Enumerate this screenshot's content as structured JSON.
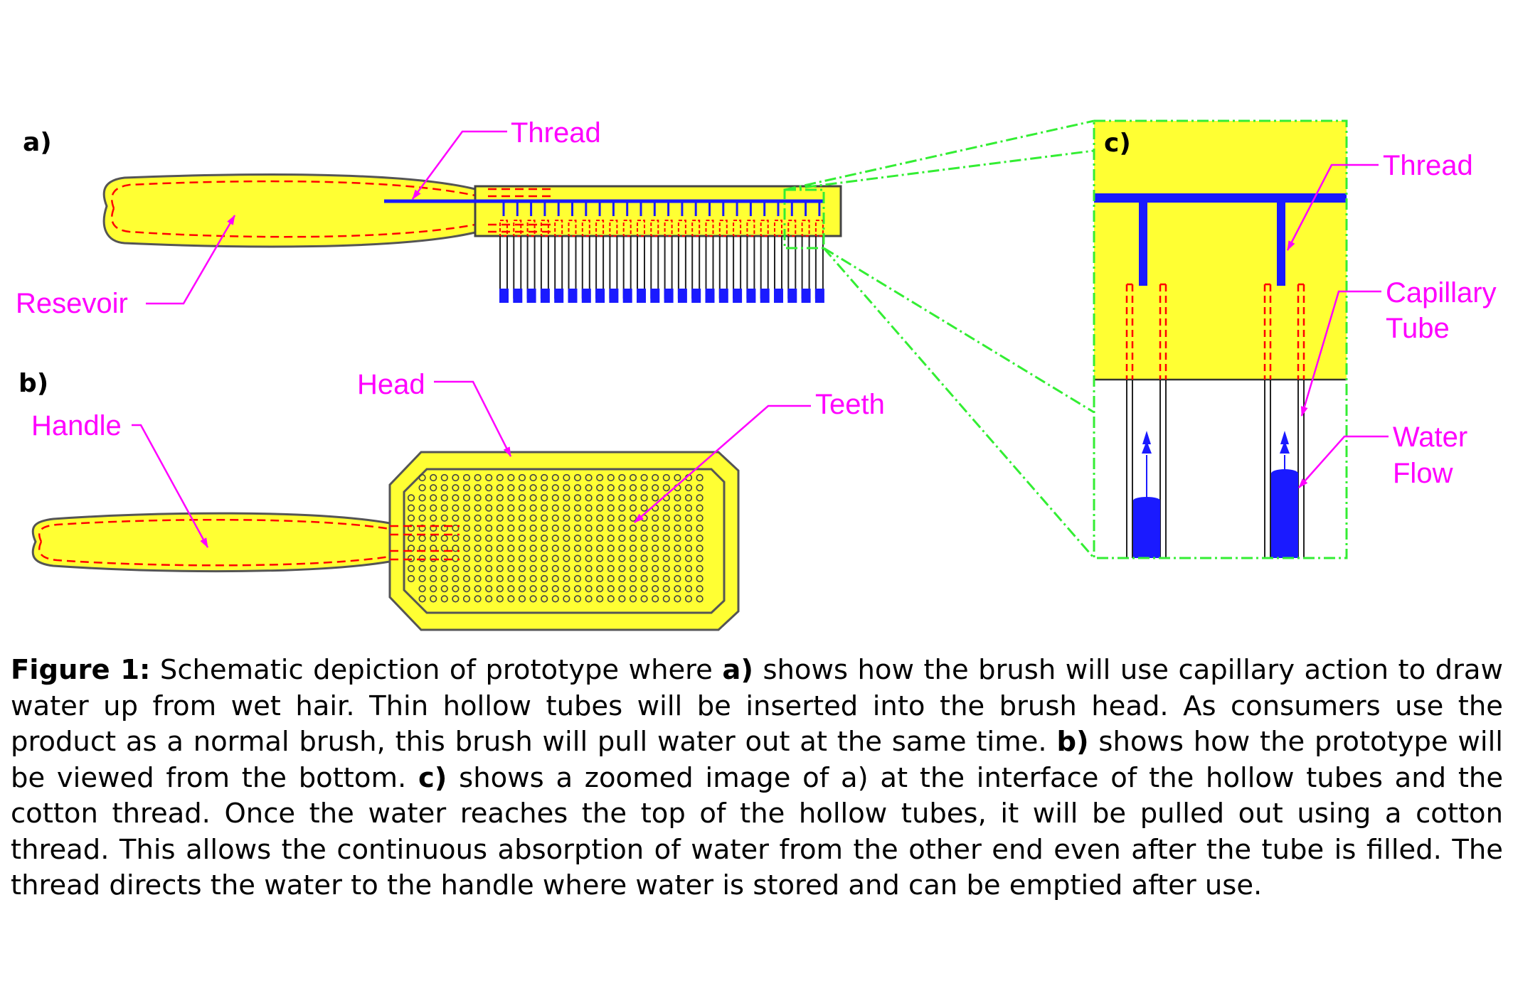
{
  "panels": {
    "a": "a)",
    "b": "b)",
    "c": "c)"
  },
  "labels": {
    "thread_a": "Thread",
    "reservoir": "Resevoir",
    "head": "Head",
    "handle": "Handle",
    "teeth": "Teeth",
    "thread_c": "Thread",
    "capillary_line1": "Capillary",
    "capillary_line2": "Tube",
    "water_line1": "Water",
    "water_line2": "Flow"
  },
  "colors": {
    "fill_yellow": "#ffff33",
    "outline_red": "#ff0000",
    "thread_blue": "#1a1aff",
    "label_magenta": "#ff00ff",
    "zoom_green": "#33ee33"
  },
  "caption": {
    "fig_label": "Figure 1:",
    "t1": " Schematic depiction of prototype where ",
    "a_label": "a)",
    "t2": " shows how the brush will use capillary action to draw water up from wet hair. Thin hollow tubes will be inserted into the brush head. As consumers use the product as a normal brush, this brush will pull water out at the same time. ",
    "b_label": "b)",
    "t3": " shows how the prototype will be viewed from the bottom. ",
    "c_label": "c)",
    "t4": " shows a zoomed image of a) at the interface of the hollow tubes and the cotton thread. Once the water reaches the top of the hollow tubes, it will be pulled out using a cotton thread. This allows the continuous absorption of water from the other end even after the tube is filled. The thread directs the water to the handle where water is stored and can be emptied after use."
  }
}
